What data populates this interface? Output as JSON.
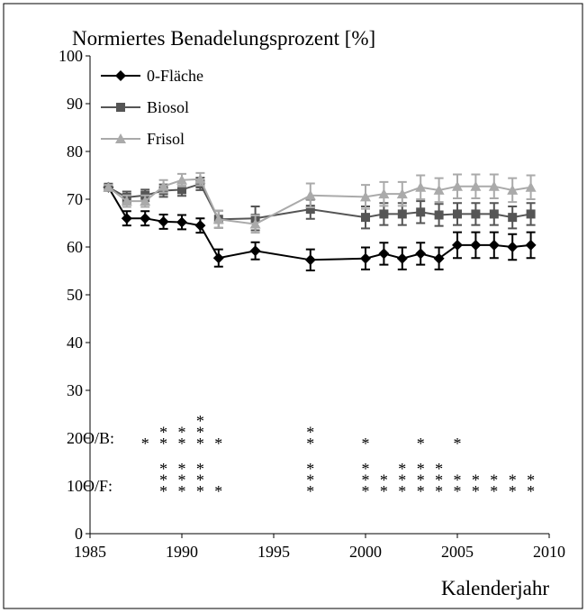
{
  "chart_data": {
    "type": "line",
    "title": "Normiertes Benadelungsprozent [%]",
    "x_label": "Kalenderjahr",
    "x": [
      1986,
      1987,
      1988,
      1989,
      1990,
      1991,
      1992,
      1994,
      1997,
      2000,
      2001,
      2002,
      2003,
      2004,
      2005,
      2006,
      2007,
      2008,
      2009
    ],
    "series": [
      {
        "name": "0-Fläche",
        "color": "#000000",
        "marker": "diamond",
        "values": [
          72.5,
          66.0,
          66.0,
          65.3,
          65.2,
          64.5,
          57.7,
          59.2,
          57.3,
          57.6,
          58.6,
          57.6,
          58.6,
          57.6,
          60.4,
          60.4,
          60.4,
          60.0,
          60.4
        ],
        "errors": [
          0.5,
          1.5,
          1.5,
          1.5,
          1.5,
          1.5,
          1.8,
          1.8,
          2.2,
          2.3,
          2.3,
          2.3,
          2.3,
          2.3,
          2.7,
          2.7,
          2.7,
          2.7,
          2.7
        ]
      },
      {
        "name": "Biosol",
        "color": "#555555",
        "marker": "square",
        "values": [
          72.5,
          70.4,
          70.8,
          71.8,
          72.0,
          73.2,
          65.8,
          66.0,
          67.9,
          66.2,
          66.9,
          66.9,
          67.3,
          66.7,
          66.9,
          66.9,
          66.9,
          66.2,
          66.9
        ],
        "errors": [
          0.5,
          1.2,
          1.2,
          1.3,
          1.3,
          1.3,
          1.8,
          2.5,
          2.0,
          2.3,
          2.3,
          2.3,
          2.3,
          2.3,
          2.3,
          2.3,
          2.3,
          2.3,
          2.3
        ]
      },
      {
        "name": "Frisol",
        "color": "#aaaaaa",
        "marker": "triangle",
        "values": [
          72.5,
          69.6,
          69.6,
          72.7,
          74.0,
          74.2,
          65.8,
          64.8,
          70.8,
          70.5,
          71.1,
          71.1,
          72.5,
          71.9,
          72.7,
          72.7,
          72.7,
          71.9,
          72.5
        ],
        "errors": [
          0.5,
          1.2,
          1.2,
          1.3,
          1.3,
          1.3,
          1.8,
          1.8,
          2.5,
          2.5,
          2.5,
          2.5,
          2.5,
          2.5,
          2.5,
          2.5,
          2.5,
          2.5,
          2.5
        ]
      }
    ],
    "xlim": [
      1985,
      2010
    ],
    "xticks": [
      1985,
      1990,
      1995,
      2000,
      2005,
      2010
    ],
    "ylim": [
      0,
      100
    ],
    "yticks": [
      0,
      10,
      20,
      30,
      40,
      50,
      60,
      70,
      80,
      90,
      100
    ],
    "legend": "upper left",
    "significance": [
      {
        "label": "O/B:",
        "y": 20,
        "marks": [
          {
            "x": 1988,
            "text": "*"
          },
          {
            "x": 1989,
            "text": "**"
          },
          {
            "x": 1990,
            "text": "**"
          },
          {
            "x": 1991,
            "text": "***"
          },
          {
            "x": 1992,
            "text": "*"
          },
          {
            "x": 1997,
            "text": "**"
          },
          {
            "x": 2000,
            "text": "*"
          },
          {
            "x": 2003,
            "text": "*"
          },
          {
            "x": 2005,
            "text": "*"
          }
        ]
      },
      {
        "label": "O/F:",
        "y": 10,
        "marks": [
          {
            "x": 1989,
            "text": "***"
          },
          {
            "x": 1990,
            "text": "***"
          },
          {
            "x": 1991,
            "text": "***"
          },
          {
            "x": 1992,
            "text": "*"
          },
          {
            "x": 1997,
            "text": "***"
          },
          {
            "x": 2000,
            "text": "***"
          },
          {
            "x": 2001,
            "text": "**"
          },
          {
            "x": 2002,
            "text": "***"
          },
          {
            "x": 2003,
            "text": "***"
          },
          {
            "x": 2004,
            "text": "***"
          },
          {
            "x": 2005,
            "text": "**"
          },
          {
            "x": 2006,
            "text": "**"
          },
          {
            "x": 2007,
            "text": "**"
          },
          {
            "x": 2008,
            "text": "**"
          },
          {
            "x": 2009,
            "text": "**"
          }
        ]
      }
    ]
  }
}
